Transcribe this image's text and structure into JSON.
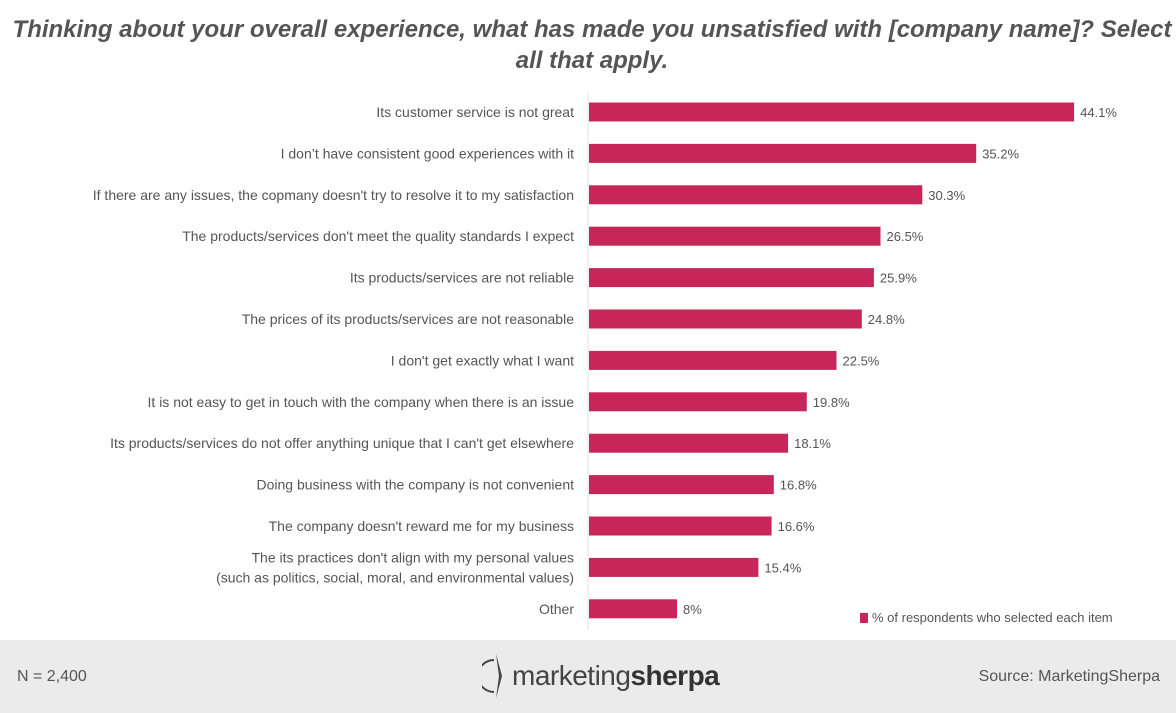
{
  "chart_data": {
    "type": "bar",
    "orientation": "horizontal",
    "title": "Thinking about your overall experience, what has made you unsatisfied with [company name]? Select all that apply.",
    "categories": [
      "Its customer service is not great",
      "I don’t have consistent good experiences with it",
      "If there are any issues, the copmany doesn't try to resolve it to my satisfaction",
      "The products/services don't meet the quality standards I expect",
      "Its products/services are not reliable",
      "The prices of its products/services are not reasonable",
      "I don't get exactly what I want",
      "It is not easy to get in touch with the company when there is an issue",
      "Its products/services do not offer anything unique that I can't get elsewhere",
      "Doing business with the company is not convenient",
      "The company doesn't reward me for my business",
      "The its practices don't align with my personal values\n(such as politics, social, moral, and environmental values)",
      "Other"
    ],
    "series": [
      {
        "name": "% of respondents who selected each item",
        "values": [
          44.1,
          35.2,
          30.3,
          26.5,
          25.9,
          24.8,
          22.5,
          19.8,
          18.1,
          16.8,
          16.6,
          15.4,
          8
        ],
        "labels": [
          "44.1%",
          "35.2%",
          "30.3%",
          "26.5%",
          "25.9%",
          "24.8%",
          "22.5%",
          "19.8%",
          "18.1%",
          "16.8%",
          "16.6%",
          "15.4%",
          "8%"
        ]
      }
    ],
    "xlim": [
      0,
      50
    ],
    "grid": false,
    "legend": "bottom-right",
    "bar_color": "#c8265a"
  },
  "footer": {
    "n": "N = 2,400",
    "logo_text_light": "marketing",
    "logo_text_bold": "sherpa",
    "source": "Source: MarketingSherpa"
  }
}
